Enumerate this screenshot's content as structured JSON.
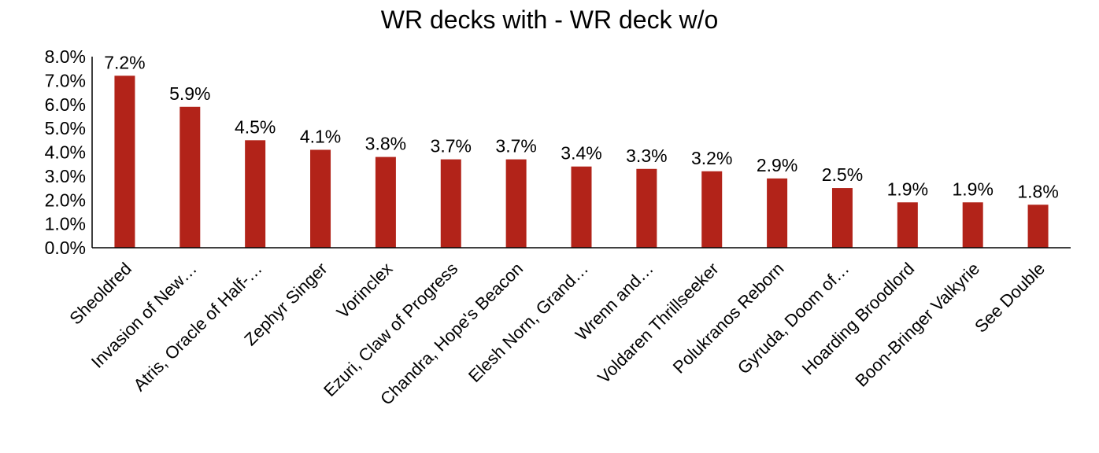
{
  "chart_data": {
    "type": "bar",
    "title": "WR decks with - WR deck w/o",
    "xlabel": "",
    "ylabel": "",
    "ylim": [
      0,
      0.08
    ],
    "yticks": [
      "0.0%",
      "1.0%",
      "2.0%",
      "3.0%",
      "4.0%",
      "5.0%",
      "6.0%",
      "7.0%",
      "8.0%"
    ],
    "grid": false,
    "legend": "none",
    "bar_color": "#b22319",
    "categories": [
      "Sheoldred",
      "Invasion of New…",
      "Atris, Oracle of Half-…",
      "Zephyr Singer",
      "Vorinclex",
      "Ezuri, Claw of Progress",
      "Chandra, Hope's Beacon",
      "Elesh Norn, Grand…",
      "Wrenn and…",
      "Voldaren Thrillseeker",
      "Polukranos Reborn",
      "Gyruda, Doom of…",
      "Hoarding Broodlord",
      "Boon-Bringer Valkyrie",
      "See Double"
    ],
    "values": [
      0.072,
      0.059,
      0.045,
      0.041,
      0.038,
      0.037,
      0.037,
      0.034,
      0.033,
      0.032,
      0.029,
      0.025,
      0.019,
      0.019,
      0.018
    ],
    "data_labels": [
      "7.2%",
      "5.9%",
      "4.5%",
      "4.1%",
      "3.8%",
      "3.7%",
      "3.7%",
      "3.4%",
      "3.3%",
      "3.2%",
      "2.9%",
      "2.5%",
      "1.9%",
      "1.9%",
      "1.8%"
    ]
  }
}
